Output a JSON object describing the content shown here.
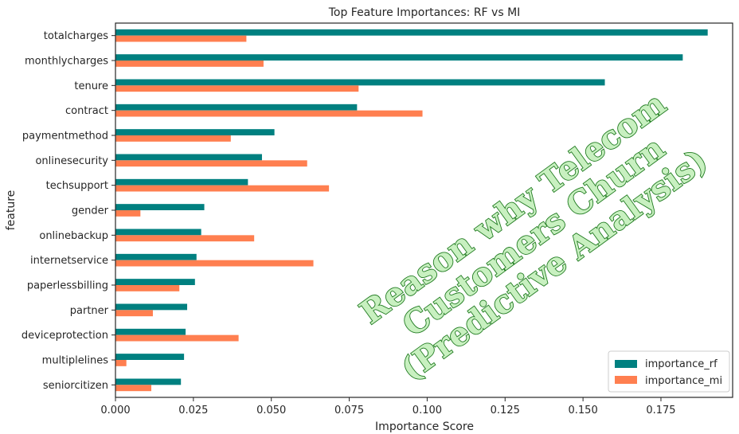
{
  "chart_data": {
    "type": "bar",
    "orientation": "horizontal",
    "title": "Top Feature Importances: RF vs MI",
    "xlabel": "Importance Score",
    "ylabel": "feature",
    "xlim": [
      0,
      0.198
    ],
    "xticks": [
      0.0,
      0.025,
      0.05,
      0.075,
      0.1,
      0.125,
      0.15,
      0.175
    ],
    "xtick_labels": [
      "0.000",
      "0.025",
      "0.050",
      "0.075",
      "0.100",
      "0.125",
      "0.150",
      "0.175"
    ],
    "grid": false,
    "legend_position": "bottom-right",
    "categories": [
      "totalcharges",
      "monthlycharges",
      "tenure",
      "contract",
      "paymentmethod",
      "onlinesecurity",
      "techsupport",
      "gender",
      "onlinebackup",
      "internetservice",
      "paperlessbilling",
      "partner",
      "deviceprotection",
      "multiplelines",
      "seniorcitizen"
    ],
    "series": [
      {
        "name": "importance_rf",
        "color": "#008080",
        "values": [
          0.19,
          0.182,
          0.157,
          0.0775,
          0.051,
          0.047,
          0.0425,
          0.0285,
          0.0275,
          0.026,
          0.0255,
          0.023,
          0.0225,
          0.022,
          0.021
        ]
      },
      {
        "name": "importance_mi",
        "color": "#ff7f50",
        "values": [
          0.042,
          0.0475,
          0.078,
          0.0985,
          0.037,
          0.0615,
          0.0685,
          0.008,
          0.0445,
          0.0635,
          0.0205,
          0.012,
          0.0395,
          0.0035,
          0.0115
        ]
      }
    ]
  },
  "watermark": {
    "lines": [
      "Reason why Telecom",
      "Customers Churn",
      "(Predictive Analysis)"
    ],
    "fill_color": "#c8f0c0",
    "stroke_color": "#1f7a1f"
  }
}
